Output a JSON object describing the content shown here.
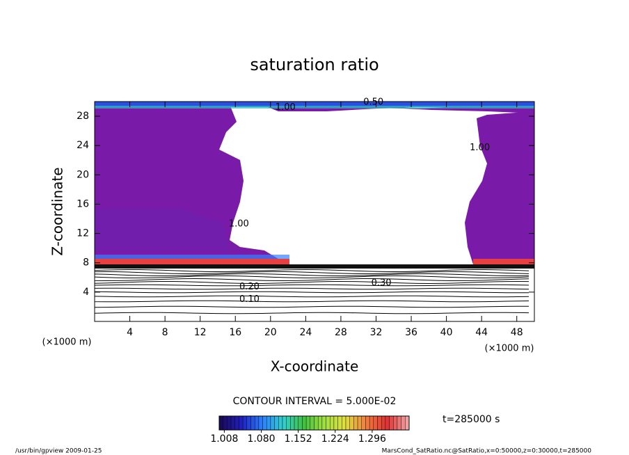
{
  "chart_data": {
    "type": "contour",
    "title": "saturation ratio",
    "xlabel": "X-coordinate",
    "ylabel": "Z-coordinate",
    "x_unit": "(×1000 m)",
    "y_unit": "(×1000 m)",
    "xlim": [
      0,
      50
    ],
    "xticks": [
      4,
      8,
      12,
      16,
      20,
      24,
      28,
      32,
      36,
      40,
      44,
      48
    ],
    "ylim": [
      0,
      30
    ],
    "yticks": [
      4,
      8,
      12,
      16,
      20,
      24,
      28
    ],
    "contour_labels": [
      {
        "label": "1.00",
        "x": 21.7,
        "y": 29.2
      },
      {
        "label": "0.50",
        "x": 31.7,
        "y": 29.9
      },
      {
        "label": "1.00",
        "x": 43.8,
        "y": 23.7
      },
      {
        "label": "1.00",
        "x": 16.4,
        "y": 13.3
      },
      {
        "label": "0.30",
        "x": 32.6,
        "y": 5.2
      },
      {
        "label": "0.20",
        "x": 17.6,
        "y": 4.7
      },
      {
        "label": "0.10",
        "x": 17.6,
        "y": 3.0
      }
    ],
    "contour_interval": "CONTOUR INTERVAL = 5.000E-02",
    "colorbar": {
      "lim": [
        0.998,
        1.368
      ],
      "ticks": [
        1.008,
        {
          "value": 1.08,
          "label": "1.080"
        },
        1.152,
        1.224,
        1.296
      ],
      "colors": [
        "#1a0a5a",
        "#2020c0",
        "#2a80ff",
        "#30d0d0",
        "#40c040",
        "#a0e040",
        "#e0e040",
        "#f08040",
        "#e03030",
        "#f0a0a0"
      ]
    },
    "time": "t=285000 s",
    "footer_left": "/usr/bin/gpview  2009-01-25",
    "footer_right": "MarsCond_SatRatio.nc@SatRatio,x=0:50000,z=0:30000,t=285000"
  }
}
